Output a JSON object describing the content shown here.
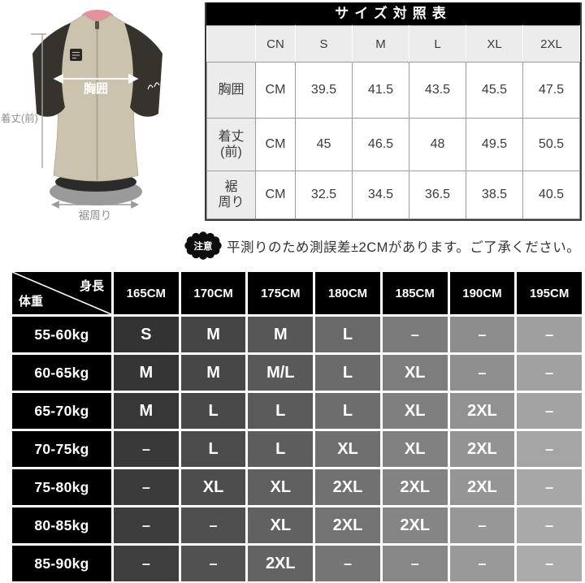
{
  "jersey_diagram": {
    "chest_label": "胸囲",
    "front_length_label": "着丈(前)",
    "hem_label": "裾周り",
    "colors": {
      "body": "#cbc3ad",
      "body_edge": "#b3aa92",
      "sleeve": "#38322d",
      "collar_pink": "#e2939b",
      "hem_inner_gray": "#9a9a9a",
      "annotation_gray": "#9a9a9a",
      "annotation_white": "#ffffff"
    }
  },
  "size_chart": {
    "title": "サイズ対照表",
    "header": [
      "",
      "CN",
      "S",
      "M",
      "L",
      "XL",
      "2XL"
    ],
    "rows": [
      {
        "label": "胸囲",
        "unit": "CM",
        "values": [
          "39.5",
          "41.5",
          "43.5",
          "45.5",
          "47.5"
        ]
      },
      {
        "label": "着丈\n(前)",
        "unit": "CM",
        "values": [
          "45",
          "46.5",
          "48",
          "49.5",
          "50.5"
        ]
      },
      {
        "label": "裾\n周り",
        "unit": "CM",
        "values": [
          "32.5",
          "34.5",
          "36.5",
          "38.5",
          "40.5"
        ]
      }
    ]
  },
  "notice": {
    "badge": "注意",
    "text": "平測りのため測誤差±2CMがあります。ご了承ください。"
  },
  "fit_matrix": {
    "corner_top": "身長",
    "corner_bottom": "体重",
    "height_columns": [
      "165CM",
      "170CM",
      "175CM",
      "180CM",
      "185CM",
      "190CM",
      "195CM"
    ],
    "weight_rows": [
      "55-60kg",
      "60-65kg",
      "65-70kg",
      "70-75kg",
      "75-80kg",
      "80-85kg",
      "85-90kg"
    ],
    "cells": [
      [
        "S",
        "M",
        "M",
        "L",
        "–",
        "–",
        "–"
      ],
      [
        "M",
        "M",
        "M/L",
        "L",
        "XL",
        "–",
        "–"
      ],
      [
        "M",
        "L",
        "L",
        "L",
        "XL",
        "2XL",
        "–"
      ],
      [
        "–",
        "L",
        "L",
        "XL",
        "XL",
        "2XL",
        "–"
      ],
      [
        "–",
        "XL",
        "XL",
        "2XL",
        "2XL",
        "2XL",
        "–"
      ],
      [
        "–",
        "–",
        "XL",
        "2XL",
        "2XL",
        "–",
        "–"
      ],
      [
        "–",
        "–",
        "2XL",
        "–",
        "–",
        "–",
        "–"
      ]
    ],
    "colors": {
      "header_bg": "#000000",
      "header_text": "#ffffff",
      "cell_text": "#ffffff",
      "shade_start_gray": 51,
      "shade_col_step": 18,
      "shade_row_step": 2
    }
  },
  "chart_data": [
    {
      "type": "table",
      "title": "サイズ対照表",
      "columns": [
        "",
        "CN",
        "S",
        "M",
        "L",
        "XL",
        "2XL"
      ],
      "rows": [
        [
          "胸囲",
          "CM",
          "39.5",
          "41.5",
          "43.5",
          "45.5",
          "47.5"
        ],
        [
          "着丈(前)",
          "CM",
          "45",
          "46.5",
          "48",
          "49.5",
          "50.5"
        ],
        [
          "裾周り",
          "CM",
          "32.5",
          "34.5",
          "36.5",
          "38.5",
          "40.5"
        ]
      ]
    },
    {
      "type": "table",
      "columns": [
        "",
        "165CM",
        "170CM",
        "175CM",
        "180CM",
        "185CM",
        "190CM",
        "195CM"
      ],
      "rows": [
        [
          "55-60kg",
          "S",
          "M",
          "M",
          "L",
          "–",
          "–",
          "–"
        ],
        [
          "60-65kg",
          "M",
          "M",
          "M/L",
          "L",
          "XL",
          "–",
          "–"
        ],
        [
          "65-70kg",
          "M",
          "L",
          "L",
          "L",
          "XL",
          "2XL",
          "–"
        ],
        [
          "70-75kg",
          "–",
          "L",
          "L",
          "XL",
          "XL",
          "2XL",
          "–"
        ],
        [
          "75-80kg",
          "–",
          "XL",
          "XL",
          "2XL",
          "2XL",
          "2XL",
          "–"
        ],
        [
          "80-85kg",
          "–",
          "–",
          "XL",
          "2XL",
          "2XL",
          "–",
          "–"
        ],
        [
          "85-90kg",
          "–",
          "–",
          "2XL",
          "–",
          "–",
          "–",
          "–"
        ]
      ]
    }
  ]
}
